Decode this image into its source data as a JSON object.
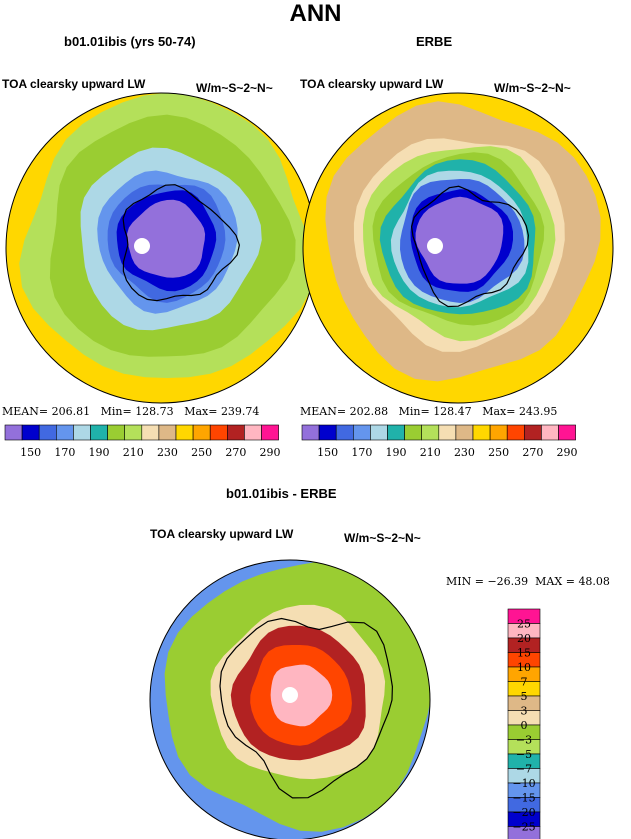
{
  "figure_title": "ANN",
  "chart_data": [
    {
      "type": "heatmap",
      "title": "b01.01ibis (yrs 50-74)",
      "variable": "TOA clearsky upward LW",
      "units": "W/m~S~2~N~",
      "projection": "south polar stereographic",
      "stats": {
        "mean_label": "MEAN=",
        "mean": "206.81",
        "min_label": "Min=",
        "min": "128.73",
        "max_label": "Max=",
        "max": "239.74"
      },
      "levels": [
        "150",
        "170",
        "190",
        "210",
        "230",
        "250",
        "270",
        "290"
      ],
      "colors": [
        "#9370db",
        "#0000cd",
        "#4169e1",
        "#6495ed",
        "#add8e6",
        "#20b2aa",
        "#9acd32",
        "#b4e05a",
        "#f5deb3",
        "#deb887",
        "#ffd700",
        "#ffa500",
        "#ff4500",
        "#b22222",
        "#ffb6c1",
        "#ff1493"
      ],
      "rings": [
        {
          "r": 0.92,
          "c": 7
        },
        {
          "r": 0.78,
          "c": 6
        },
        {
          "r": 0.58,
          "c": 4
        },
        {
          "r": 0.45,
          "c": 3
        },
        {
          "r": 0.38,
          "c": 2
        },
        {
          "r": 0.32,
          "c": 1
        },
        {
          "r": 0.25,
          "c": 0
        }
      ]
    },
    {
      "type": "heatmap",
      "title": "ERBE",
      "variable": "TOA clearsky upward LW",
      "units": "W/m~S~2~N~",
      "projection": "south polar stereographic",
      "stats": {
        "mean_label": "MEAN=",
        "mean": "202.88",
        "min_label": "Min=",
        "min": "128.47",
        "max_label": "Max=",
        "max": "243.95"
      },
      "levels": [
        "150",
        "170",
        "190",
        "210",
        "230",
        "250",
        "270",
        "290"
      ],
      "colors": [
        "#9370db",
        "#0000cd",
        "#4169e1",
        "#6495ed",
        "#add8e6",
        "#20b2aa",
        "#9acd32",
        "#b4e05a",
        "#f5deb3",
        "#deb887",
        "#ffd700",
        "#ffa500",
        "#ff4500",
        "#b22222",
        "#ffb6c1",
        "#ff1493"
      ],
      "rings": [
        {
          "r": 0.88,
          "c": 9
        },
        {
          "r": 0.68,
          "c": 8
        },
        {
          "r": 0.62,
          "c": 7
        },
        {
          "r": 0.55,
          "c": 6
        },
        {
          "r": 0.5,
          "c": 5
        },
        {
          "r": 0.44,
          "c": 4
        },
        {
          "r": 0.4,
          "c": 2
        },
        {
          "r": 0.33,
          "c": 1
        },
        {
          "r": 0.28,
          "c": 0
        }
      ]
    },
    {
      "type": "heatmap",
      "title": "b01.01ibis - ERBE",
      "variable": "TOA clearsky upward LW",
      "units": "W/m~S~2~N~",
      "projection": "south polar stereographic",
      "stats": {
        "min_label": "MIN =",
        "min": "−26.39",
        "max_label": "MAX =",
        "max": "48.08"
      },
      "levels": [
        "25",
        "20",
        "15",
        "10",
        "7",
        "5",
        "3",
        "0",
        "−3",
        "−5",
        "−7",
        "−10",
        "−15",
        "−20",
        "−25"
      ],
      "colors": [
        "#ff1493",
        "#ffb6c1",
        "#b22222",
        "#ff4500",
        "#ffa500",
        "#ffd700",
        "#deb887",
        "#f5deb3",
        "#9acd32",
        "#b4e05a",
        "#20b2aa",
        "#add8e6",
        "#6495ed",
        "#4169e1",
        "#0000cd",
        "#9370db"
      ],
      "rings": [
        {
          "r": 0.95,
          "c": 8
        },
        {
          "r": 0.62,
          "c": 7
        },
        {
          "r": 0.48,
          "c": 2
        },
        {
          "r": 0.36,
          "c": 3
        },
        {
          "r": 0.22,
          "c": 1
        }
      ]
    }
  ]
}
